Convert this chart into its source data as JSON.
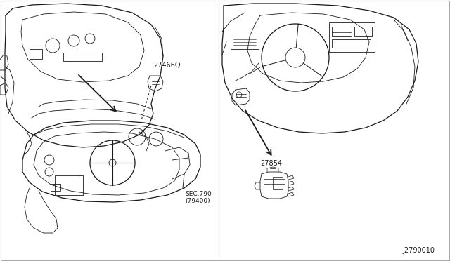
{
  "bg_color": "#ffffff",
  "line_color": "#1a1a1a",
  "divider_color": "#888888",
  "label_274660": "27466Q",
  "label_27854": "27854",
  "label_sec790_1": "SEC.790",
  "label_sec790_2": "(79400)",
  "label_diagram_id": "J2790010",
  "fig_width": 6.4,
  "fig_height": 3.72,
  "dpi": 100
}
